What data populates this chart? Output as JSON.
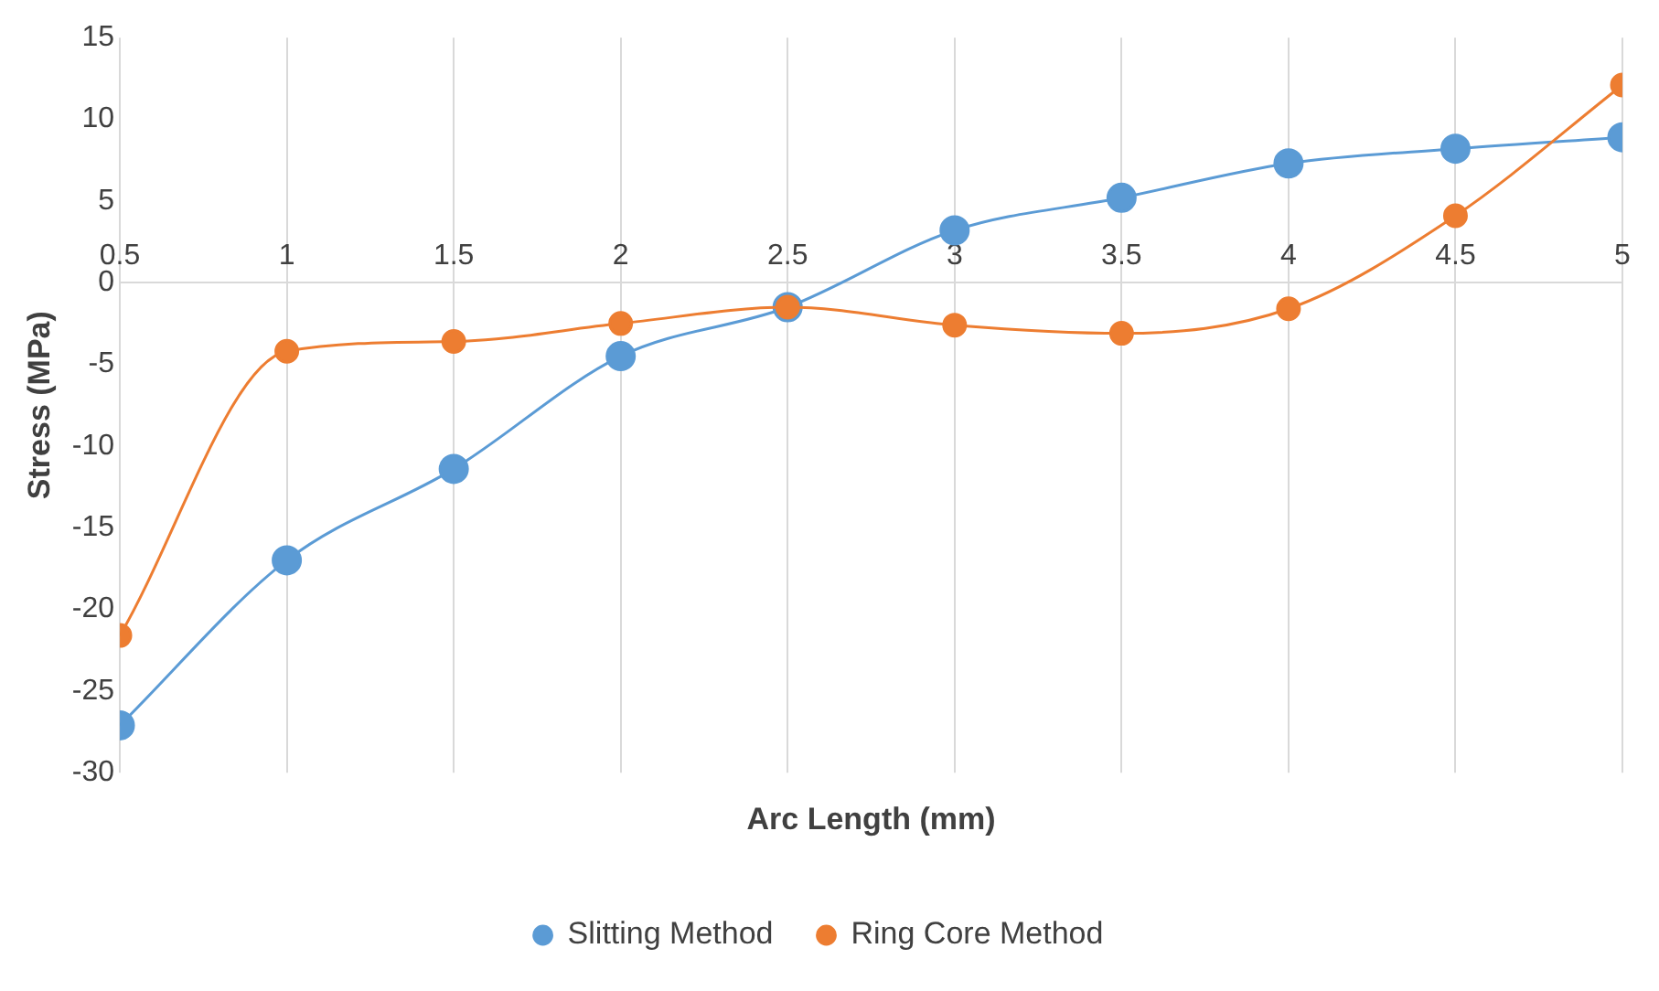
{
  "chart_data": {
    "type": "line",
    "xlabel": "Arc Length (mm)",
    "ylabel": "Stress (MPa)",
    "x": [
      0.5,
      1,
      1.5,
      2,
      2.5,
      3,
      3.5,
      4,
      4.5,
      5
    ],
    "series": [
      {
        "name": "Slitting Method",
        "color": "#5b9bd5",
        "values": [
          -27.1,
          -17.0,
          -11.4,
          -4.5,
          -1.5,
          3.2,
          5.2,
          7.3,
          8.2,
          8.9
        ]
      },
      {
        "name": "Ring Core Method",
        "color": "#ed7d31",
        "values": [
          -21.6,
          -4.2,
          -3.6,
          -2.5,
          -1.5,
          -2.6,
          -3.1,
          -1.6,
          4.1,
          12.1
        ]
      }
    ],
    "xlim": [
      0.5,
      5
    ],
    "xticks": [
      0.5,
      1,
      1.5,
      2,
      2.5,
      3,
      3.5,
      4,
      4.5,
      5
    ],
    "ylim": [
      -30,
      15
    ],
    "yticks": [
      -30,
      -25,
      -20,
      -15,
      -10,
      -5,
      0,
      5,
      10,
      15
    ],
    "grid": "x",
    "legend": "bottom",
    "marker": "circle",
    "line_style": "solid"
  }
}
